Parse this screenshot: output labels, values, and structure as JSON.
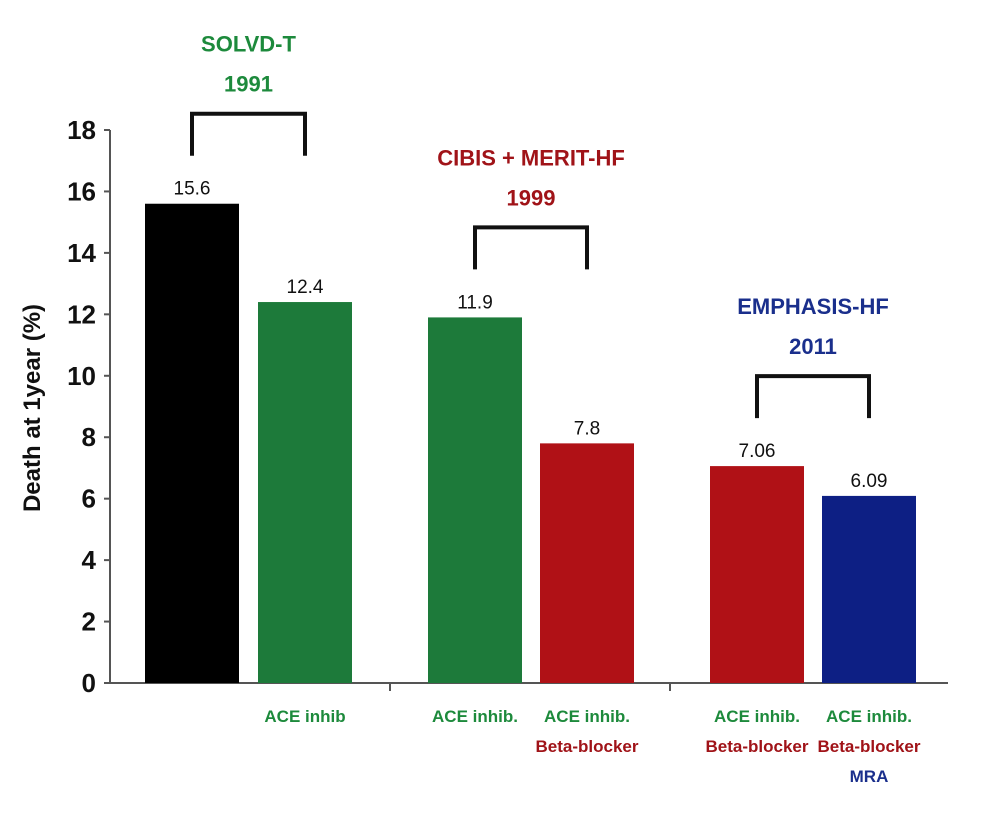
{
  "chart_data": {
    "type": "bar",
    "ylabel": "Death at 1year (%)",
    "ylim": [
      0,
      18
    ],
    "yticks": [
      0,
      2,
      4,
      6,
      8,
      10,
      12,
      14,
      16,
      18
    ],
    "grid": false,
    "bars": [
      {
        "value": 15.6,
        "label": "15.6",
        "color": "#000000",
        "category": []
      },
      {
        "value": 12.4,
        "label": "12.4",
        "color": "#1d7a3a",
        "category": [
          {
            "text": "ACE inhib",
            "color": "#1d8a3c"
          }
        ]
      },
      {
        "value": 11.9,
        "label": "11.9",
        "color": "#1d7a3a",
        "category": [
          {
            "text": "ACE inhib.",
            "color": "#1d8a3c"
          }
        ]
      },
      {
        "value": 7.8,
        "label": "7.8",
        "color": "#b01116",
        "category": [
          {
            "text": "ACE inhib.",
            "color": "#1d8a3c"
          },
          {
            "text": "Beta-blocker",
            "color": "#a01318"
          }
        ]
      },
      {
        "value": 7.06,
        "label": "7.06",
        "color": "#b01116",
        "category": [
          {
            "text": "ACE inhib.",
            "color": "#1d8a3c"
          },
          {
            "text": "Beta-blocker",
            "color": "#a01318"
          }
        ]
      },
      {
        "value": 6.09,
        "label": "6.09",
        "color": "#0d1f84",
        "category": [
          {
            "text": "ACE inhib.",
            "color": "#1d8a3c"
          },
          {
            "text": "Beta-blocker",
            "color": "#a01318"
          },
          {
            "text": "MRA",
            "color": "#1a2f8c"
          }
        ]
      }
    ],
    "groups": [
      {
        "name": "SOLVD-T",
        "year": "1991",
        "color": "#1d8a3c",
        "bars": [
          0,
          1
        ]
      },
      {
        "name": "CIBIS + MERIT-HF",
        "year": "1999",
        "color": "#a01318",
        "bars": [
          2,
          3
        ]
      },
      {
        "name": "EMPHASIS-HF",
        "year": "2011",
        "color": "#1a2f8c",
        "bars": [
          4,
          5
        ]
      }
    ]
  }
}
